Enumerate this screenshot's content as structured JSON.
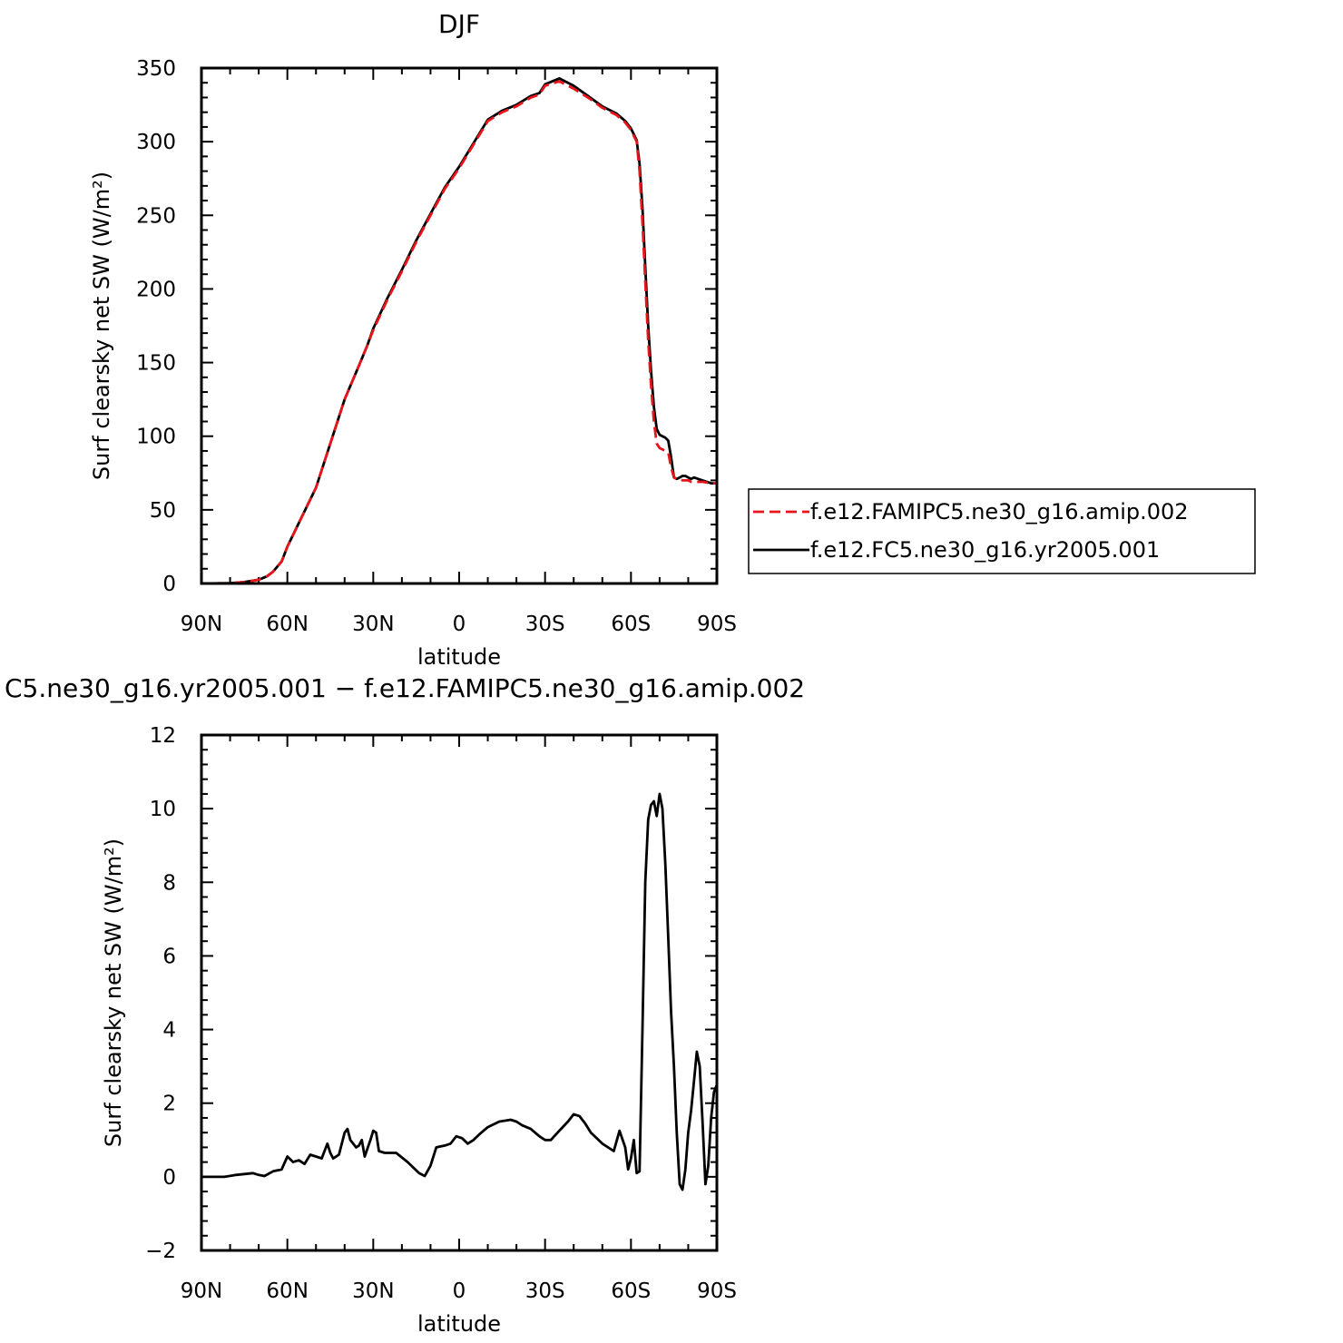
{
  "chart_data": [
    {
      "type": "line",
      "title": "DJF",
      "xlabel": "latitude",
      "ylabel": "Surf clearsky net SW (W/m²)",
      "xlim": [
        -90,
        90
      ],
      "ylim": [
        0,
        350
      ],
      "x_ticks": [
        {
          "value": -90,
          "label": "90N"
        },
        {
          "value": -60,
          "label": "60N"
        },
        {
          "value": -30,
          "label": "30N"
        },
        {
          "value": 0,
          "label": "0"
        },
        {
          "value": 30,
          "label": "30S"
        },
        {
          "value": 60,
          "label": "60S"
        },
        {
          "value": 90,
          "label": "90S"
        }
      ],
      "y_ticks": [
        {
          "value": 0,
          "label": "0"
        },
        {
          "value": 50,
          "label": "50"
        },
        {
          "value": 100,
          "label": "100"
        },
        {
          "value": 150,
          "label": "150"
        },
        {
          "value": 200,
          "label": "200"
        },
        {
          "value": 250,
          "label": "250"
        },
        {
          "value": 300,
          "label": "300"
        },
        {
          "value": 350,
          "label": "350"
        }
      ],
      "legend_position": "right",
      "series": [
        {
          "name": "f.e12.FAMIPC5.ne30_g16.amip.002",
          "color": "#e8141b",
          "dash": "dashed",
          "x": [
            -90,
            -80,
            -75,
            -70,
            -67,
            -65,
            -62,
            -60,
            -57,
            -55,
            -50,
            -45,
            -40,
            -35,
            -32,
            -30,
            -25,
            -20,
            -15,
            -10,
            -5,
            0,
            5,
            10,
            15,
            20,
            25,
            28,
            30,
            35,
            40,
            45,
            50,
            55,
            58,
            60,
            62,
            63,
            64,
            65,
            66,
            67,
            68,
            69,
            70,
            71,
            72,
            73,
            74,
            75,
            76,
            77,
            78,
            79,
            80,
            81,
            82,
            85,
            88,
            90
          ],
          "y": [
            0,
            0.2,
            1,
            2.5,
            5,
            8,
            15,
            25,
            37,
            45,
            65,
            95,
            125,
            148,
            162,
            172,
            193,
            212,
            232,
            250,
            268,
            282,
            298,
            314,
            320,
            324,
            330,
            332,
            338,
            341,
            336,
            330,
            323,
            318,
            313,
            308,
            300,
            280,
            245,
            205,
            165,
            135,
            110,
            95,
            92,
            91,
            90,
            89,
            79,
            72,
            71,
            71,
            70,
            70,
            70,
            69,
            69,
            69,
            68,
            68
          ]
        },
        {
          "name": "f.e12.FC5.ne30_g16.yr2005.001",
          "color": "#000000",
          "dash": "solid",
          "x": [
            -90,
            -80,
            -75,
            -70,
            -67,
            -65,
            -62,
            -60,
            -57,
            -55,
            -50,
            -45,
            -40,
            -35,
            -32,
            -30,
            -25,
            -20,
            -15,
            -10,
            -5,
            0,
            5,
            10,
            15,
            20,
            25,
            28,
            30,
            35,
            40,
            45,
            50,
            55,
            58,
            60,
            62,
            63,
            64,
            65,
            66,
            67,
            68,
            69,
            70,
            71,
            72,
            73,
            74,
            75,
            76,
            77,
            78,
            79,
            80,
            81,
            82,
            85,
            88,
            90
          ],
          "y": [
            0,
            0.2,
            1,
            2.5,
            5,
            8,
            15,
            25,
            37,
            45,
            65,
            95,
            125,
            148,
            162,
            173,
            194,
            213,
            233,
            251,
            269,
            283,
            299,
            315,
            321,
            325,
            331,
            333,
            339,
            343,
            338,
            331,
            324,
            319,
            314,
            309,
            301,
            285,
            255,
            215,
            175,
            145,
            120,
            105,
            101,
            100,
            99,
            97,
            86,
            72,
            71,
            72,
            73,
            73,
            72,
            71,
            72,
            70,
            68,
            68
          ]
        }
      ]
    },
    {
      "type": "line",
      "title": "C5.ne30_g16.yr2005.001 − f.e12.FAMIPC5.ne30_g16.amip.002",
      "xlabel": "latitude",
      "ylabel": "Surf clearsky net SW (W/m²)",
      "xlim": [
        -90,
        90
      ],
      "ylim": [
        -2,
        12
      ],
      "x_ticks": [
        {
          "value": -90,
          "label": "90N"
        },
        {
          "value": -60,
          "label": "60N"
        },
        {
          "value": -30,
          "label": "30N"
        },
        {
          "value": 0,
          "label": "0"
        },
        {
          "value": 30,
          "label": "30S"
        },
        {
          "value": 60,
          "label": "60S"
        },
        {
          "value": 90,
          "label": "90S"
        }
      ],
      "y_ticks": [
        {
          "value": -2,
          "label": "−2"
        },
        {
          "value": 0,
          "label": "0"
        },
        {
          "value": 2,
          "label": "2"
        },
        {
          "value": 4,
          "label": "4"
        },
        {
          "value": 6,
          "label": "6"
        },
        {
          "value": 8,
          "label": "8"
        },
        {
          "value": 10,
          "label": "10"
        },
        {
          "value": 12,
          "label": "12"
        }
      ],
      "series": [
        {
          "color": "#000000",
          "dash": "solid",
          "x": [
            -90,
            -82,
            -78,
            -72,
            -70,
            -68,
            -65,
            -62,
            -60,
            -58,
            -56,
            -54,
            -52,
            -50,
            -48,
            -46,
            -45,
            -44,
            -42,
            -40,
            -39,
            -38,
            -36,
            -35,
            -34,
            -33,
            -31,
            -30,
            -29,
            -28,
            -26,
            -24,
            -22,
            -18,
            -14,
            -12,
            -10,
            -8,
            -5,
            -3,
            -1,
            1,
            3,
            5,
            7,
            10,
            14,
            18,
            20,
            22,
            25,
            28,
            30,
            32,
            35,
            38,
            40,
            42,
            44,
            46,
            50,
            54,
            56,
            58,
            59,
            60,
            61,
            62,
            63,
            64,
            65,
            66,
            67,
            68,
            69,
            70,
            71,
            72,
            73,
            74,
            75,
            76,
            77,
            78,
            79,
            80,
            81,
            82,
            83,
            84,
            85,
            86,
            87,
            88,
            89,
            90
          ],
          "y": [
            0,
            0,
            0.05,
            0.1,
            0.05,
            0.02,
            0.15,
            0.2,
            0.55,
            0.4,
            0.45,
            0.35,
            0.6,
            0.55,
            0.5,
            0.9,
            0.65,
            0.5,
            0.6,
            1.2,
            1.3,
            1.0,
            0.8,
            0.85,
            1.0,
            0.55,
            1.0,
            1.25,
            1.2,
            0.7,
            0.65,
            0.65,
            0.65,
            0.4,
            0.1,
            0.02,
            0.3,
            0.8,
            0.85,
            0.9,
            1.1,
            1.05,
            0.9,
            1.0,
            1.15,
            1.35,
            1.5,
            1.55,
            1.5,
            1.4,
            1.3,
            1.1,
            1.0,
            1.0,
            1.25,
            1.5,
            1.7,
            1.65,
            1.45,
            1.2,
            0.9,
            0.7,
            1.25,
            0.8,
            0.2,
            0.5,
            1.0,
            0.1,
            0.15,
            4,
            8,
            9.7,
            10.1,
            10.2,
            9.8,
            10.4,
            10.0,
            8.5,
            6.5,
            4.5,
            3.0,
            1.2,
            -0.2,
            -0.35,
            0.2,
            1.2,
            1.8,
            2.6,
            3.4,
            3.0,
            1.5,
            -0.2,
            0.3,
            1.6,
            2.3,
            2.5
          ]
        }
      ]
    }
  ]
}
